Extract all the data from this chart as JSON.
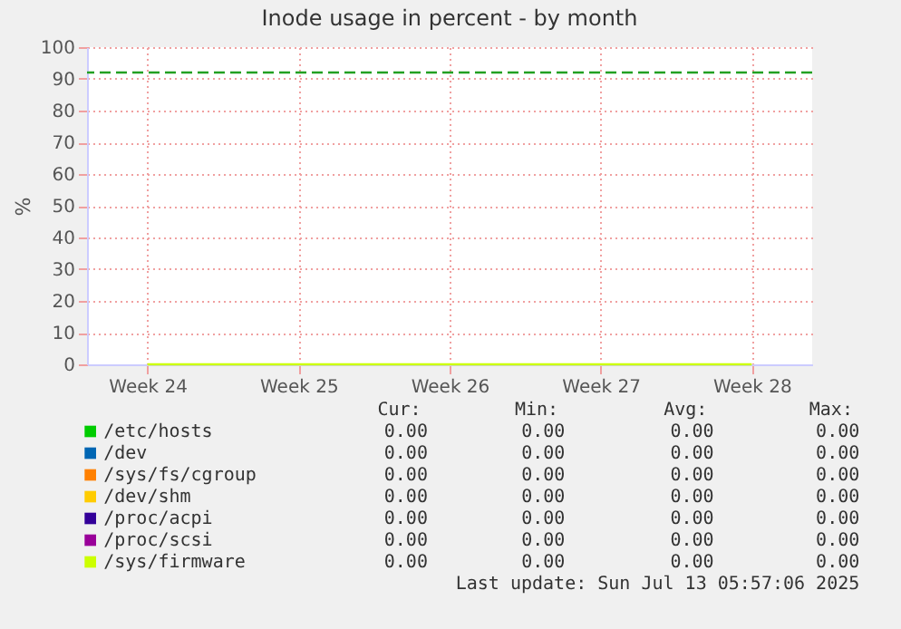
{
  "chart_data": {
    "type": "line",
    "title": "Inode usage in percent - by month",
    "ylabel": "%",
    "categories": [
      "Week 24",
      "Week 25",
      "Week 26",
      "Week 27",
      "Week 28"
    ],
    "series": [
      {
        "name": "/etc/hosts",
        "color": "#00cc00",
        "values": [
          null,
          null,
          null,
          null,
          null
        ]
      },
      {
        "name": "/dev",
        "color": "#0066b3",
        "values": [
          null,
          null,
          null,
          null,
          null
        ]
      },
      {
        "name": "/sys/fs/cgroup",
        "color": "#ff8000",
        "values": [
          null,
          null,
          null,
          null,
          null
        ]
      },
      {
        "name": "/dev/shm",
        "color": "#ffcc00",
        "values": [
          null,
          null,
          null,
          null,
          null
        ]
      },
      {
        "name": "/proc/acpi",
        "color": "#330099",
        "values": [
          null,
          null,
          null,
          null,
          null
        ]
      },
      {
        "name": "/proc/scsi",
        "color": "#990099",
        "values": [
          null,
          null,
          null,
          null,
          null
        ]
      },
      {
        "name": "/sys/firmware",
        "color": "#ccff00",
        "values": [
          0,
          0,
          0,
          0,
          0
        ]
      }
    ],
    "ylim": [
      0,
      100
    ],
    "yticks": [
      0,
      10,
      20,
      30,
      40,
      50,
      60,
      70,
      80,
      90,
      100
    ],
    "grid": true,
    "legend": "bottom",
    "ref_lines": [
      {
        "axis": "y",
        "value": 92,
        "color": "#22a022",
        "line_style": "dashed"
      }
    ],
    "annotations": [
      "Cur:",
      "Min:",
      "Avg:",
      "Max:",
      "0.00",
      "0.00",
      "0.00",
      "0.00",
      "0.00",
      "0.00",
      "0.00",
      "0.00",
      "0.00",
      "0.00",
      "0.00",
      "0.00",
      "0.00",
      "0.00",
      "0.00",
      "0.00",
      "0.00",
      "0.00",
      "0.00",
      "0.00",
      "0.00",
      "0.00",
      "0.00",
      "0.00",
      "0.00",
      "0.00",
      "0.00",
      "0.00",
      "Last update: Sun Jul 13 05:57:06 2025"
    ]
  }
}
